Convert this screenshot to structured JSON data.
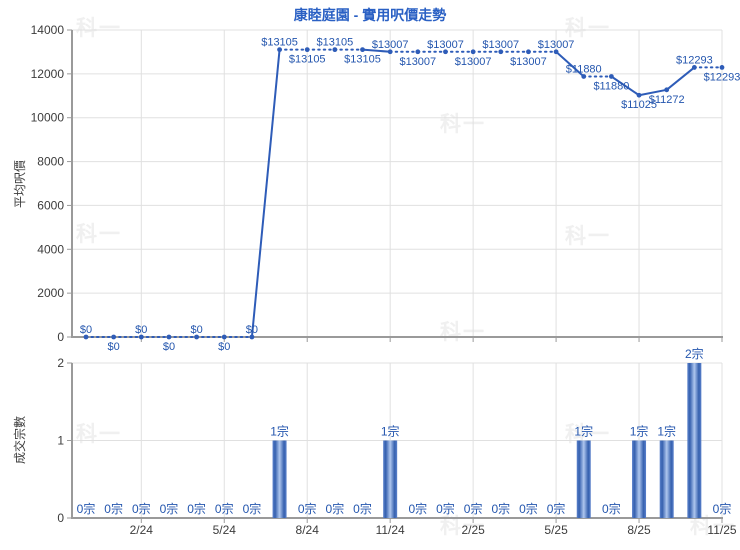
{
  "title": "康睦庭園 - 實用呎價走勢",
  "watermark": {
    "text": "科一"
  },
  "price_chart": {
    "y_axis_title": "平均呎價",
    "yticks": [
      0,
      2000,
      4000,
      6000,
      8000,
      10000,
      12000,
      14000
    ],
    "label_prefix": "$"
  },
  "count_chart": {
    "y_axis_title": "成交宗數",
    "yticks": [
      0,
      1,
      2
    ],
    "label_suffix": "宗"
  },
  "x_tick_labels": [
    "2/24",
    "5/24",
    "8/24",
    "11/24",
    "2/25",
    "5/25",
    "8/25",
    "11/25"
  ],
  "colors": {
    "title_blue": "#2a60c4",
    "line_blue": "#2e5cb8",
    "label_blue": "#2456ae",
    "bar_dark": "#3560ae",
    "bar_mid": "#5b82cc",
    "bar_light": "#aec6ee",
    "grid": "#e0e0e0",
    "axis": "#9a9a9a",
    "tick_text": "#3c3c3c",
    "watermark": "#f0f0f0"
  },
  "chart_data": [
    {
      "type": "line",
      "name": "average-price-per-sqft",
      "title": "平均呎價",
      "x": [
        "12/23",
        "1/24",
        "2/24",
        "3/24",
        "4/24",
        "5/24",
        "6/24",
        "7/24",
        "8/24",
        "9/24",
        "10/24",
        "11/24",
        "12/24",
        "1/25",
        "2/25",
        "3/25",
        "4/25",
        "5/25",
        "6/25",
        "7/25",
        "8/25",
        "9/25",
        "10/25",
        "11/25"
      ],
      "values": [
        0,
        0,
        0,
        0,
        0,
        0,
        0,
        13105,
        13105,
        13105,
        13105,
        13007,
        13007,
        13007,
        13007,
        13007,
        13007,
        13007,
        11880,
        11880,
        11025,
        11272,
        12293,
        12293
      ],
      "label_side": [
        "above",
        "below",
        "above",
        "below",
        "above",
        "below",
        "above",
        "above",
        "below",
        "above",
        "below",
        "above",
        "below",
        "above",
        "below",
        "above",
        "below",
        "above",
        "above",
        "below",
        "below",
        "below",
        "above",
        "below"
      ],
      "ylim": [
        0,
        14000
      ],
      "grid": true,
      "legend": "none"
    },
    {
      "type": "bar",
      "name": "transaction-count",
      "title": "成交宗數",
      "x": [
        "12/23",
        "1/24",
        "2/24",
        "3/24",
        "4/24",
        "5/24",
        "6/24",
        "7/24",
        "8/24",
        "9/24",
        "10/24",
        "11/24",
        "12/24",
        "1/25",
        "2/25",
        "3/25",
        "4/25",
        "5/25",
        "6/25",
        "7/25",
        "8/25",
        "9/25",
        "10/25",
        "11/25"
      ],
      "values": [
        0,
        0,
        0,
        0,
        0,
        0,
        0,
        1,
        0,
        0,
        0,
        1,
        0,
        0,
        0,
        0,
        0,
        0,
        1,
        0,
        1,
        1,
        2,
        0
      ],
      "ylim": [
        0,
        2
      ],
      "grid": true,
      "legend": "none"
    }
  ]
}
